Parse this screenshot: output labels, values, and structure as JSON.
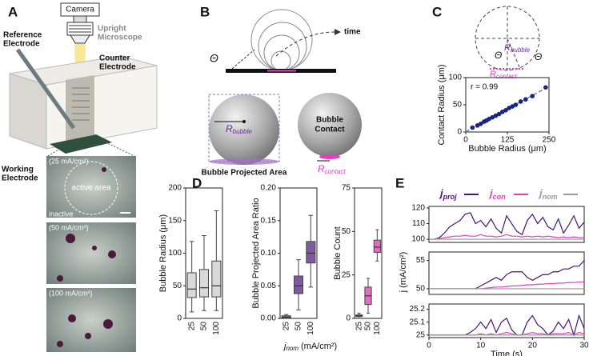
{
  "panels": {
    "a": "A",
    "b": "B",
    "c": "C",
    "d": "D",
    "e": "E"
  },
  "panel_a": {
    "camera": "Camera",
    "microscope": [
      "Upright",
      "Microscope"
    ],
    "reference": [
      "Reference",
      "Electrode"
    ],
    "counter": [
      "Counter",
      "Electrode"
    ],
    "working": [
      "Working",
      "Electrode"
    ],
    "images": [
      "(25 mA/cm²)",
      "(50 mA/cm²)",
      "(100 mA/cm²)"
    ],
    "active": "active area",
    "inactive": "inactive"
  },
  "panel_b": {
    "time": "time",
    "theta": "Θ",
    "r": "R",
    "r_bubble_sub": "bubble",
    "projected": "Bubble Projected Area",
    "contact": [
      "Bubble",
      "Contact"
    ],
    "r_contact_sub": "contact"
  },
  "panel_c": {
    "theta": "Θ",
    "r": "R",
    "bubble_sub": "bubble",
    "contact_sub": "contact"
  },
  "panel_d": {
    "xlabel_main": "j",
    "xlabel_sub": "nom",
    "xlabel_unit": "(mA/cm²)"
  },
  "panel_e": {
    "ylabel": "j (mA/cm²)"
  },
  "chart_data": [
    {
      "type": "scatter",
      "xlabel": "Bubble Radius (μm)",
      "ylabel": "Contact Radius (μm)",
      "annotation": "r = 0.99",
      "color": "#1a237e",
      "x": [
        20,
        35,
        45,
        55,
        62,
        70,
        80,
        90,
        100,
        110,
        120,
        130,
        140,
        150,
        165,
        180,
        200,
        240
      ],
      "values": [
        8,
        12,
        15,
        19,
        21,
        24,
        27,
        30,
        33,
        37,
        40,
        44,
        47,
        50,
        56,
        60,
        66,
        82
      ],
      "xlim": [
        0,
        250
      ],
      "xticks": [
        0,
        125,
        250
      ],
      "ylim": [
        0,
        100
      ],
      "yticks": [
        0,
        50,
        100
      ]
    },
    {
      "type": "box",
      "ylabel": "Bubble Radius (μm)",
      "categories": [
        "25",
        "50",
        "100"
      ],
      "colors": [
        "#d9d9d9",
        "#d9d9d9",
        "#d9d9d9"
      ],
      "boxes": [
        {
          "min": 10,
          "q1": 32,
          "median": 45,
          "q3": 70,
          "max": 118
        },
        {
          "min": 12,
          "q1": 33,
          "median": 47,
          "q3": 75,
          "max": 127
        },
        {
          "min": 12,
          "q1": 33,
          "median": 50,
          "q3": 88,
          "max": 165
        }
      ],
      "ylim": [
        0,
        200
      ],
      "yticks": [
        0,
        50,
        100,
        150,
        200
      ]
    },
    {
      "type": "box",
      "ylabel": "Bubble Projected Area Ratio",
      "categories": [
        "25",
        "50",
        "100"
      ],
      "colors": [
        "#a07ab8",
        "#7f5a9e",
        "#7f5a9e"
      ],
      "boxes": [
        {
          "min": 0,
          "q1": 0.001,
          "median": 0.002,
          "q3": 0.004,
          "max": 0.006
        },
        {
          "min": 0.013,
          "q1": 0.038,
          "median": 0.05,
          "q3": 0.065,
          "max": 0.09
        },
        {
          "min": 0.048,
          "q1": 0.085,
          "median": 0.1,
          "q3": 0.118,
          "max": 0.158
        }
      ],
      "ylim": [
        0,
        0.2
      ],
      "yticks": [
        {
          "value": 0,
          "label": "0.00"
        },
        0.05,
        {
          "value": 0.1,
          "label": "0.10"
        },
        0.15,
        {
          "value": 0.2,
          "label": "0.20"
        }
      ]
    },
    {
      "type": "box",
      "ylabel": "Bubble Count",
      "categories": [
        "25",
        "50",
        "100"
      ],
      "colors": [
        "#e88ccc",
        "#e070c0",
        "#e070c0"
      ],
      "boxes": [
        {
          "min": 0,
          "q1": 1,
          "median": 1.5,
          "q3": 2,
          "max": 3
        },
        {
          "min": 3,
          "q1": 8,
          "median": 13,
          "q3": 18,
          "max": 23
        },
        {
          "min": 33,
          "q1": 38,
          "median": 41,
          "q3": 45,
          "max": 51
        }
      ],
      "ylim": [
        0,
        75
      ],
      "yticks": [
        0,
        25,
        50,
        75
      ]
    },
    {
      "type": "line",
      "x": [
        0,
        1,
        2,
        3,
        4,
        5,
        6,
        7,
        8,
        9,
        10,
        11,
        12,
        13,
        14,
        15,
        16,
        17,
        18,
        19,
        20,
        21,
        22,
        23,
        24,
        25,
        26,
        27,
        28,
        29,
        30
      ],
      "series": [
        {
          "name": "j",
          "name_sub": "proj",
          "color": "#4b1373",
          "values": [
            100,
            100,
            101,
            104,
            108,
            110,
            112,
            116,
            117,
            110,
            112,
            108,
            113,
            107,
            104,
            115,
            110,
            105,
            103,
            112,
            116,
            110,
            114,
            108,
            106,
            113,
            104,
            109,
            115,
            107,
            111
          ]
        },
        {
          "name": "j",
          "name_sub": "con",
          "color": "#e040c0",
          "values": [
            100,
            100,
            100.5,
            101,
            101.5,
            102,
            102,
            102.5,
            102,
            102,
            103,
            102,
            102,
            101.5,
            102,
            103,
            102,
            102,
            101.5,
            102,
            101.5,
            102,
            101.5,
            102,
            101.5,
            101,
            101.5,
            101,
            101.5,
            101,
            101
          ]
        },
        {
          "name": "j",
          "name_sub": "nom",
          "color": "#999999",
          "values": [
            100,
            100,
            100,
            100,
            100,
            100,
            100,
            100,
            100,
            100,
            100,
            100,
            100,
            100,
            100,
            100,
            100,
            100,
            100,
            100,
            100,
            100,
            100,
            100,
            100,
            100,
            100,
            100,
            100,
            100,
            100
          ]
        }
      ],
      "xlim": [
        0,
        30
      ],
      "ylim": [
        98,
        121
      ],
      "yticks": [
        100,
        110,
        120
      ]
    },
    {
      "type": "line",
      "x": [
        0,
        1,
        2,
        3,
        4,
        5,
        6,
        7,
        8,
        9,
        10,
        11,
        12,
        13,
        14,
        15,
        16,
        17,
        18,
        19,
        20,
        21,
        22,
        23,
        24,
        25,
        26,
        27,
        28,
        29,
        30
      ],
      "series": [
        {
          "color": "#4b1373",
          "values": [
            50,
            50,
            50,
            50,
            50,
            50,
            50,
            50,
            50,
            50,
            50.5,
            51,
            51.5,
            52,
            51.5,
            52.5,
            53,
            53,
            53,
            52,
            51.5,
            52,
            52.5,
            52.5,
            53,
            53,
            53.5,
            53.5,
            54,
            54,
            55
          ]
        },
        {
          "color": "#e040c0",
          "values": [
            50,
            50,
            50,
            50,
            50,
            50,
            50,
            50,
            50,
            50,
            50,
            50.1,
            50.2,
            50.3,
            50.3,
            50.4,
            50.5,
            50.5,
            50.6,
            50.7,
            50.7,
            50.8,
            50.8,
            50.9,
            50.9,
            51,
            51,
            51.1,
            51.1,
            51.2,
            51.2
          ]
        },
        {
          "color": "#999999",
          "values": [
            50,
            50,
            50,
            50,
            50,
            50,
            50,
            50,
            50,
            50,
            50,
            50,
            50,
            50,
            50,
            50,
            50,
            50,
            50,
            50,
            50,
            50,
            50,
            50,
            50,
            50,
            50,
            50,
            50,
            50,
            50
          ]
        }
      ],
      "xlim": [
        0,
        30
      ],
      "ylim": [
        49,
        56.5
      ],
      "yticks": [
        50,
        55
      ]
    },
    {
      "type": "line",
      "x": [
        0,
        1,
        2,
        3,
        4,
        5,
        6,
        7,
        8,
        9,
        10,
        11,
        12,
        13,
        14,
        15,
        16,
        17,
        18,
        19,
        20,
        21,
        22,
        23,
        24,
        25,
        26,
        27,
        28,
        29,
        30
      ],
      "series": [
        {
          "color": "#4b1373",
          "values": [
            25,
            25,
            25,
            25,
            25,
            25,
            25,
            25,
            25.02,
            25.05,
            25.1,
            25.05,
            25.12,
            25.02,
            25.1,
            25.13,
            25.04,
            25,
            25,
            25.1,
            25.15,
            25.08,
            25.05,
            25,
            25.03,
            25.1,
            25.05,
            25.12,
            25,
            25.15,
            25.05
          ]
        },
        {
          "color": "#e040c0",
          "values": [
            25,
            25,
            25,
            25,
            25,
            25,
            25,
            25,
            25,
            25,
            25.01,
            25,
            25.01,
            25,
            25.01,
            25.02,
            25.01,
            25,
            25,
            25.01,
            25.02,
            25.01,
            25.01,
            25,
            25.01,
            25.01,
            25.01,
            25.02,
            25,
            25.02,
            25.01
          ]
        },
        {
          "color": "#999999",
          "values": [
            25,
            25,
            25,
            25,
            25,
            25,
            25,
            25,
            25,
            25,
            25,
            25,
            25,
            25,
            25,
            25,
            25,
            25,
            25,
            25,
            25,
            25,
            25,
            25,
            25,
            25,
            25,
            25,
            25,
            25,
            25
          ]
        }
      ],
      "xlim": [
        0,
        30
      ],
      "xticks": [
        0,
        10,
        20,
        30
      ],
      "xlabel": "Time (s)",
      "ylim": [
        24.98,
        25.24
      ],
      "yticks": [
        25,
        25.1,
        25.2
      ]
    }
  ]
}
